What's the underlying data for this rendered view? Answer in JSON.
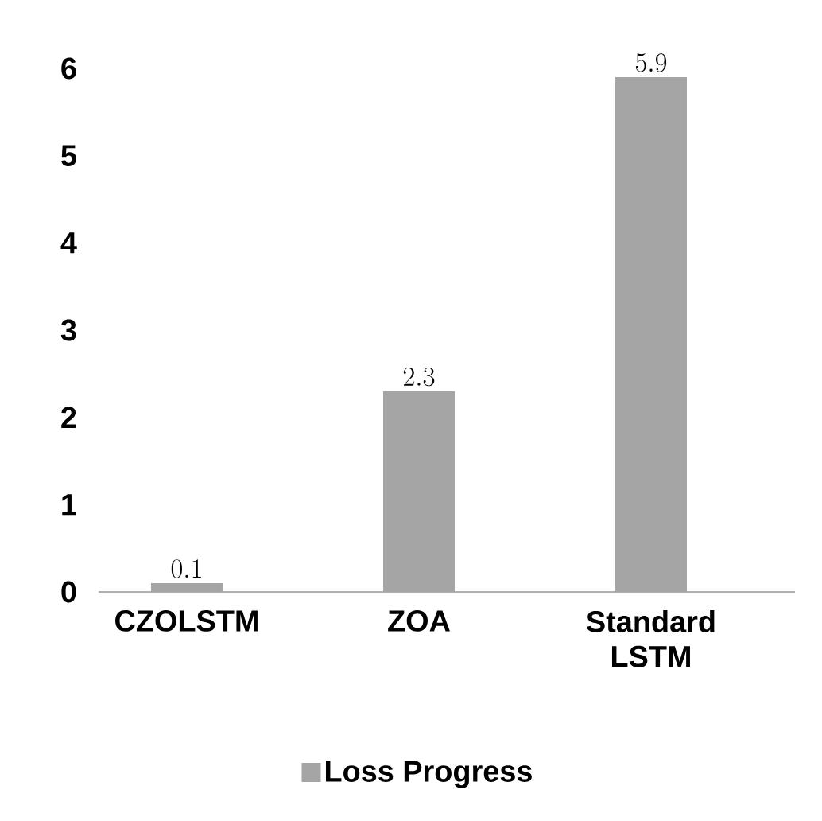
{
  "chart_data": {
    "type": "bar",
    "categories": [
      "CZOLSTM",
      "ZOA",
      "Standard LSTM"
    ],
    "series": [
      {
        "name": "Loss Progress",
        "color": "#a5a5a5",
        "values": [
          0.1,
          2.3,
          5.9
        ]
      }
    ],
    "ylim": [
      0,
      6
    ],
    "yticks": [
      0,
      1,
      2,
      3,
      4,
      5,
      6
    ],
    "data_labels": true,
    "grid": false,
    "legend": "bottom"
  }
}
